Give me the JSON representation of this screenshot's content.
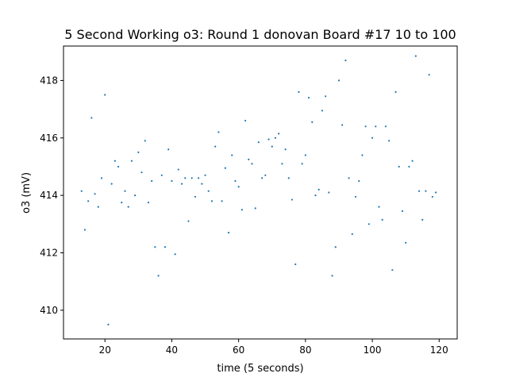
{
  "chart_data": {
    "type": "scatter",
    "title": "5 Second Working o3: Round 1 donovan Board #17 10 to 100",
    "xlabel": "time (5 seconds)",
    "ylabel": "o3 (mV)",
    "xlim": [
      7.6,
      125.4
    ],
    "ylim": [
      409.0,
      419.2
    ],
    "xticks": [
      20,
      40,
      60,
      80,
      100,
      120
    ],
    "yticks": [
      410,
      412,
      414,
      416,
      418
    ],
    "grid": false,
    "marker_color": "#1f77b4",
    "x": [
      13,
      14,
      15,
      16,
      17,
      18,
      19,
      20,
      21,
      22,
      23,
      24,
      25,
      26,
      27,
      28,
      29,
      30,
      31,
      32,
      33,
      34,
      35,
      36,
      37,
      38,
      39,
      40,
      41,
      42,
      43,
      44,
      45,
      46,
      47,
      48,
      49,
      50,
      51,
      52,
      53,
      54,
      55,
      56,
      57,
      58,
      59,
      60,
      61,
      62,
      63,
      64,
      65,
      66,
      67,
      68,
      69,
      70,
      71,
      72,
      73,
      74,
      75,
      76,
      77,
      78,
      79,
      80,
      81,
      82,
      83,
      84,
      85,
      86,
      87,
      88,
      89,
      90,
      91,
      92,
      93,
      94,
      95,
      96,
      97,
      98,
      99,
      100,
      101,
      102,
      103,
      104,
      105,
      106,
      107,
      108,
      109,
      110,
      111,
      112,
      113,
      114,
      115,
      116,
      117,
      118,
      119
    ],
    "y": [
      414.15,
      412.8,
      413.8,
      416.7,
      414.05,
      413.6,
      414.6,
      417.5,
      409.5,
      414.4,
      415.2,
      415.0,
      413.75,
      414.15,
      413.6,
      415.2,
      414.0,
      415.5,
      414.8,
      415.9,
      413.75,
      414.5,
      412.2,
      411.2,
      414.7,
      412.2,
      415.6,
      414.5,
      411.95,
      414.9,
      414.4,
      414.6,
      413.1,
      414.6,
      413.95,
      414.6,
      414.4,
      414.7,
      414.15,
      413.8,
      415.7,
      416.2,
      413.8,
      414.95,
      412.7,
      415.4,
      414.5,
      414.3,
      413.5,
      416.6,
      415.25,
      415.1,
      413.55,
      415.85,
      414.6,
      414.7,
      415.95,
      415.7,
      416.0,
      416.15,
      415.1,
      415.6,
      414.6,
      413.85,
      411.6,
      417.6,
      415.1,
      415.4,
      417.4,
      416.55,
      414.0,
      414.2,
      416.95,
      417.45,
      414.1,
      411.2,
      412.2,
      418.0,
      416.45,
      418.7,
      414.6,
      412.65,
      413.95,
      414.5,
      415.4,
      416.4,
      413.0,
      416.0,
      416.4,
      413.6,
      413.15,
      416.4,
      415.9,
      411.4,
      417.6,
      415.0,
      413.45,
      412.35,
      415.0,
      415.2,
      418.85,
      414.15,
      413.15,
      414.15,
      418.2,
      413.95,
      414.1
    ]
  }
}
